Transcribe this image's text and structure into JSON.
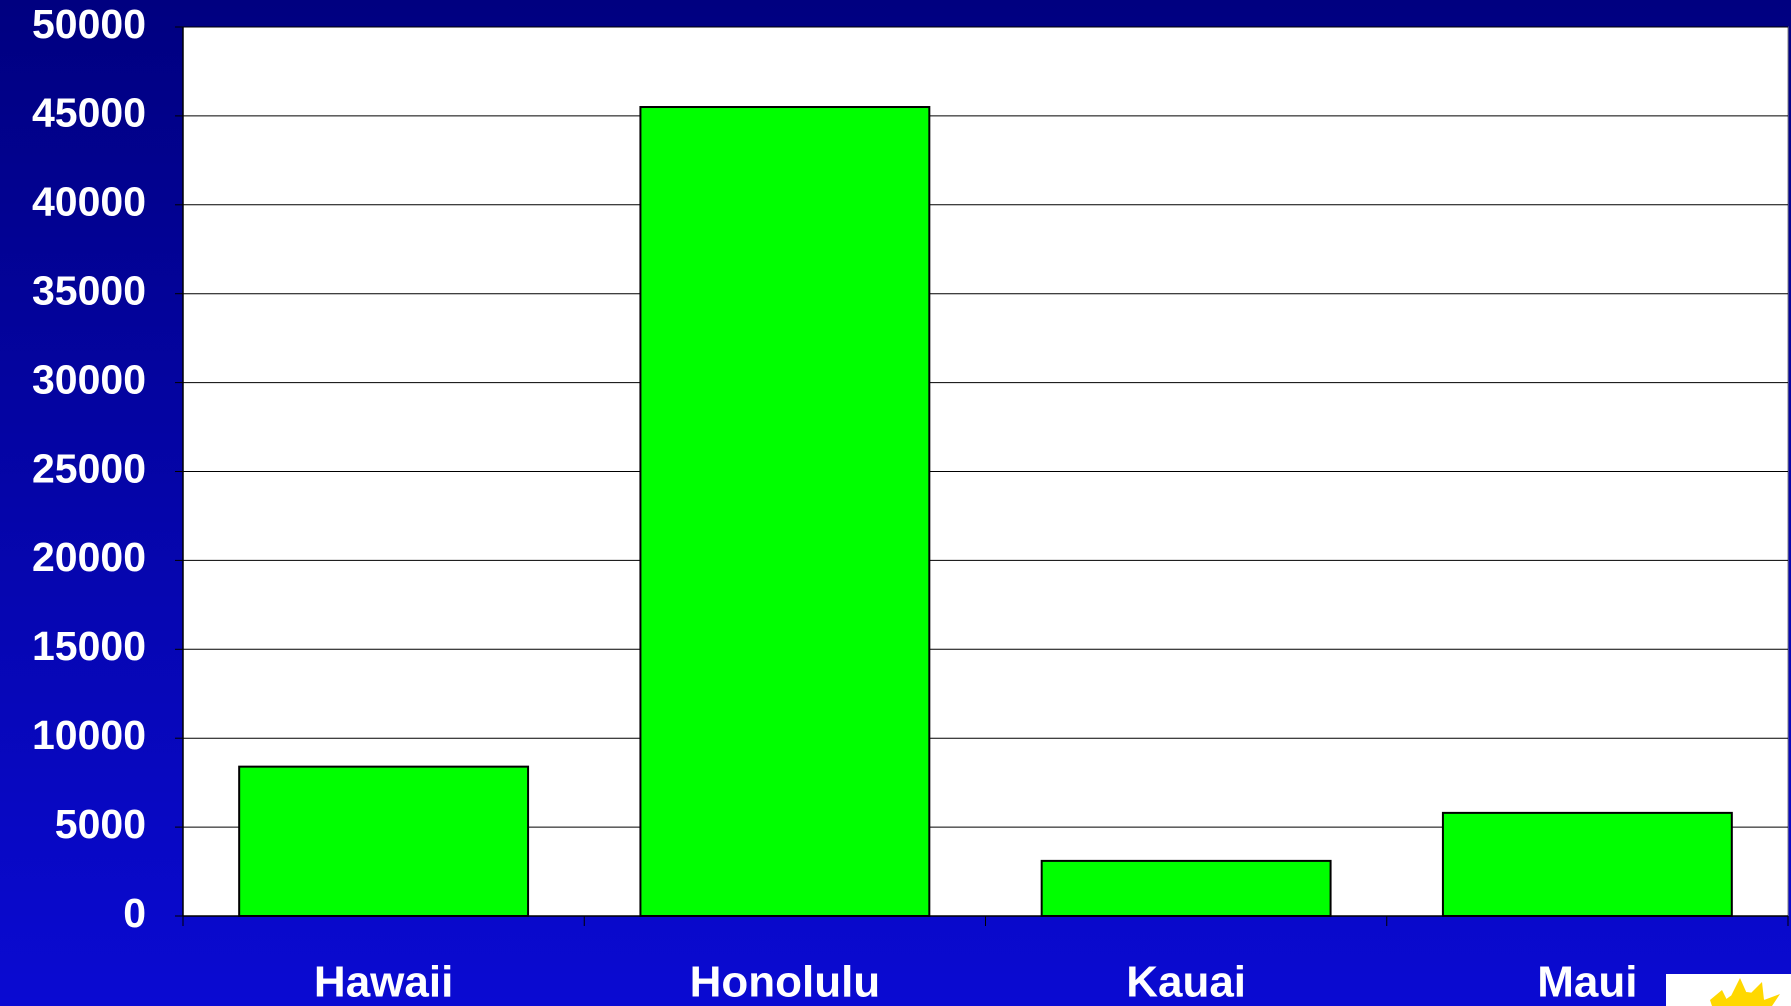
{
  "chart_data": {
    "type": "bar",
    "categories": [
      "Hawaii",
      "Honolulu",
      "Kauai",
      "Maui"
    ],
    "values": [
      8400,
      45500,
      3100,
      5800
    ],
    "color": "#00ff00",
    "ylim": [
      0,
      50000
    ],
    "yticks": [
      0,
      5000,
      10000,
      15000,
      20000,
      25000,
      30000,
      35000,
      40000,
      45000,
      50000
    ],
    "grid": true
  }
}
